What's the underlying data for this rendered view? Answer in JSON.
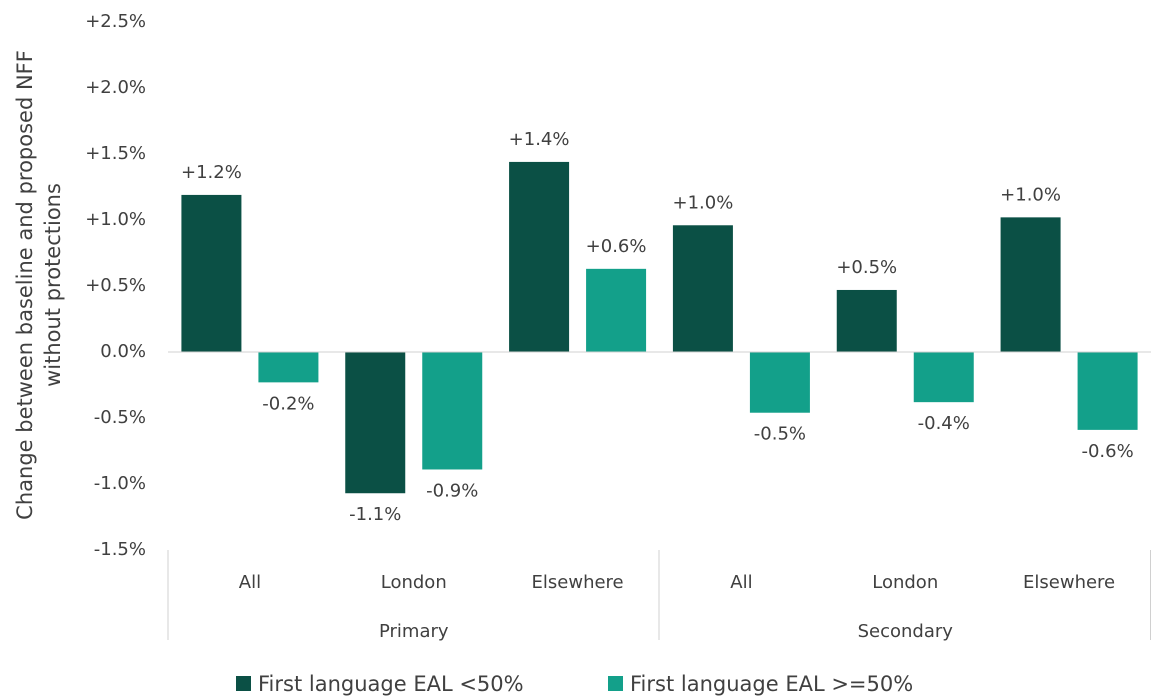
{
  "chart_data": {
    "type": "bar",
    "ylabel": [
      "Change between baseline and proposed NFF",
      "without protections"
    ],
    "category_groups": [
      {
        "name": "Primary",
        "categories": [
          "All",
          "London",
          "Elsewhere"
        ]
      },
      {
        "name": "Secondary",
        "categories": [
          "All",
          "London",
          "Elsewhere"
        ]
      }
    ],
    "series": [
      {
        "name": "First language EAL <50%",
        "color": "#0b5045",
        "values": [
          1.19,
          -1.07,
          1.44,
          0.96,
          0.47,
          1.02
        ],
        "value_labels": [
          "+1.2%",
          "-1.1%",
          "+1.4%",
          "+1.0%",
          "+0.5%",
          "+1.0%"
        ]
      },
      {
        "name": "First language EAL >=50%",
        "color": "#13a08a",
        "values": [
          -0.23,
          -0.89,
          0.63,
          -0.46,
          -0.38,
          -0.59
        ],
        "value_labels": [
          "-0.2%",
          "-0.9%",
          "+0.6%",
          "-0.5%",
          "-0.4%",
          "-0.6%"
        ]
      }
    ],
    "ylim": [
      -1.5,
      2.5
    ],
    "yticks": [
      {
        "value": -1.5,
        "label": "-1.5%"
      },
      {
        "value": -1.0,
        "label": "-1.0%"
      },
      {
        "value": -0.5,
        "label": "-0.5%"
      },
      {
        "value": 0,
        "label": "0.0%"
      },
      {
        "value": 0.5,
        "label": "+0.5%"
      },
      {
        "value": 1.0,
        "label": "+1.0%"
      },
      {
        "value": 1.5,
        "label": "+1.5%"
      },
      {
        "value": 2.0,
        "label": "+2.0%"
      },
      {
        "value": 2.5,
        "label": "+2.5%"
      }
    ],
    "grid": false,
    "legend": "bottom"
  }
}
